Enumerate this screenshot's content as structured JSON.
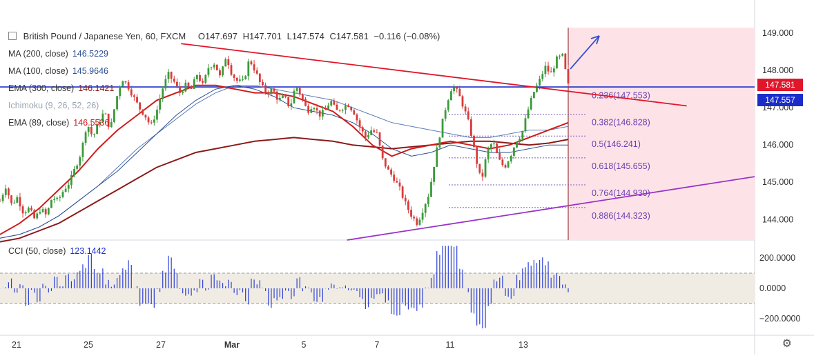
{
  "header": {
    "symbol": "British Pound / Japanese Yen, 60, FXCM",
    "open": "O147.697",
    "high": "H147.701",
    "low": "L147.574",
    "close": "C147.581",
    "change": "−0.116 (−0.08%)"
  },
  "legend": [
    {
      "name": "MA (200, close)",
      "value": "146.5229",
      "color": "#2a4f91"
    },
    {
      "name": "MA (100, close)",
      "value": "145.9646",
      "color": "#2a4f91"
    },
    {
      "name": "EMA (300, close)",
      "value": "146.1421",
      "color": "#8b1a1a"
    },
    {
      "name": "Ichimoku (9, 26, 52, 26)",
      "value": "",
      "color": "#9aa4b1"
    },
    {
      "name": "EMA (89, close)",
      "value": "146.5536",
      "color": "#d11a1a"
    }
  ],
  "price_tags": {
    "last": "147.581",
    "last_color": "#e0162b",
    "line": "147.557",
    "line_color": "#1b2dc9"
  },
  "cci_label": "CCI (50, close)",
  "cci_value": "123.1442",
  "chart_data": {
    "type": "candlestick",
    "title": "British Pound / Japanese Yen, 60, FXCM",
    "xlabel": "",
    "ylabel": "",
    "x_ticks": [
      "21",
      "25",
      "27",
      "Mar",
      "5",
      "7",
      "11",
      "13"
    ],
    "y_ticks": [
      144.0,
      145.0,
      146.0,
      147.0,
      148.0,
      149.0
    ],
    "ylim": [
      143.45,
      149.15
    ],
    "fib_levels": [
      {
        "label": "0.236(147.553)",
        "value": 147.553
      },
      {
        "label": "0.382(146.828)",
        "value": 146.828
      },
      {
        "label": "0.5(146.241)",
        "value": 146.241
      },
      {
        "label": "0.618(145.655)",
        "value": 145.655
      },
      {
        "label": "0.764(144.930)",
        "value": 144.93
      },
      {
        "label": "0.886(144.323)",
        "value": 144.323
      }
    ],
    "horizontal_line": 147.557,
    "close_path": [
      144.5,
      144.9,
      144.4,
      144.6,
      144.2,
      144.3,
      144.0,
      144.3,
      144.1,
      144.6,
      144.5,
      144.8,
      145.0,
      145.4,
      145.8,
      146.6,
      146.2,
      146.6,
      146.9,
      146.4,
      147.2,
      147.8,
      147.6,
      147.3,
      147.0,
      146.8,
      146.5,
      146.9,
      147.5,
      147.9,
      147.7,
      147.4,
      147.6,
      147.5,
      147.9,
      147.6,
      148.1,
      148.2,
      147.8,
      148.4,
      147.9,
      147.7,
      147.7,
      148.3,
      148.0,
      147.6,
      147.4,
      147.5,
      147.2,
      147.3,
      147.0,
      147.6,
      147.3,
      146.9,
      147.1,
      146.8,
      146.9,
      147.2,
      146.9,
      147.0,
      147.1,
      146.9,
      146.5,
      146.2,
      146.4,
      146.3,
      145.6,
      145.3,
      145.1,
      144.8,
      144.4,
      144.1,
      143.9,
      144.3,
      144.7,
      145.6,
      146.4,
      147.1,
      147.6,
      147.4,
      147.0,
      146.5,
      145.7,
      145.0,
      145.8,
      146.1,
      145.6,
      145.4,
      145.7,
      146.1,
      146.3,
      146.9,
      147.4,
      147.7,
      148.1,
      147.9,
      148.3,
      148.4,
      147.6
    ],
    "ma200_path": [
      143.5,
      143.6,
      143.8,
      144.1,
      144.5,
      144.9,
      145.4,
      145.9,
      146.3,
      146.7,
      147.1,
      147.4,
      147.6,
      147.6,
      147.5,
      147.4,
      147.3,
      147.2,
      147.0,
      146.8,
      146.6,
      146.5,
      146.4,
      146.3,
      146.2,
      146.2,
      146.3,
      146.4,
      146.4,
      146.5
    ],
    "ma100_path": [
      143.5,
      143.6,
      143.8,
      144.1,
      144.5,
      144.9,
      145.3,
      145.8,
      146.3,
      146.8,
      147.2,
      147.5,
      147.6,
      147.5,
      147.3,
      147.0,
      146.9,
      146.8,
      146.6,
      146.3,
      145.9,
      145.7,
      145.8,
      146.0,
      145.9,
      145.8,
      145.8,
      145.9,
      146.0,
      146.0
    ],
    "ema89_path": [
      143.6,
      143.9,
      144.3,
      144.8,
      145.3,
      145.9,
      146.4,
      146.8,
      147.2,
      147.4,
      147.6,
      147.6,
      147.5,
      147.4,
      147.4,
      147.3,
      147.1,
      146.9,
      146.5,
      146.0,
      145.7,
      145.9,
      146.0,
      146.1,
      146.0,
      145.9,
      146.0,
      146.2,
      146.4,
      146.6
    ],
    "ema300_path": [
      143.4,
      143.5,
      143.7,
      143.9,
      144.2,
      144.5,
      144.8,
      145.1,
      145.4,
      145.6,
      145.8,
      145.9,
      146.0,
      146.1,
      146.15,
      146.2,
      146.15,
      146.1,
      146.0,
      145.95,
      145.9,
      145.95,
      146.0,
      146.05,
      146.1,
      146.1,
      146.05,
      146.0,
      146.05,
      146.15
    ],
    "trendlines": [
      {
        "name": "resistance",
        "from": [
          0.24,
          148.72
        ],
        "to": [
          0.91,
          147.05
        ],
        "color": "#e0162b"
      },
      {
        "name": "support",
        "from": [
          0.46,
          143.45
        ],
        "to": [
          1.0,
          145.15
        ],
        "color": "#9933cc"
      }
    ],
    "cci": {
      "label": "CCI (50, close)",
      "ylim": [
        -300,
        300
      ],
      "y_ticks": [
        200.0,
        0.0,
        -200.0
      ],
      "y_tick_labels": [
        "200.0000",
        "0.0000",
        "−200.0000"
      ],
      "band": [
        100,
        -100
      ],
      "current": 123.1442
    }
  }
}
